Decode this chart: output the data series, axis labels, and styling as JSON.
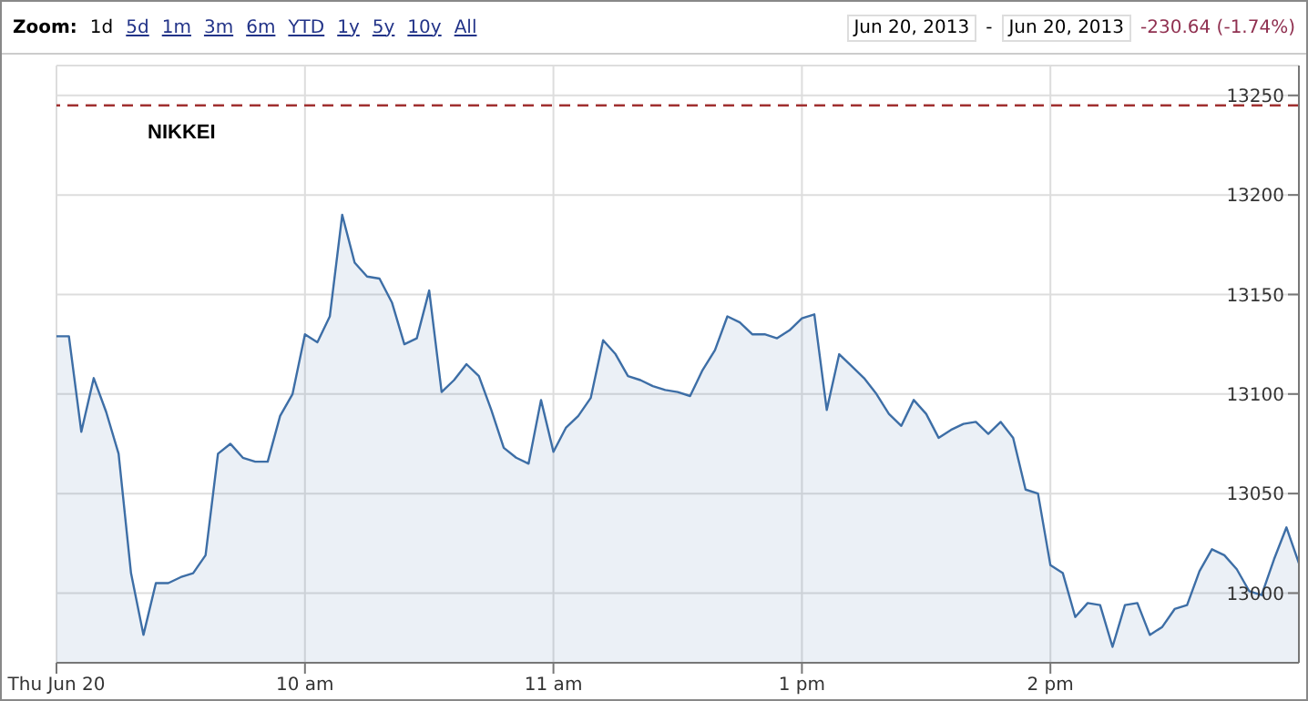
{
  "chart_data": {
    "type": "area",
    "title": "NIKKEI",
    "annotations": [
      "Zoom:",
      "1d",
      "5d",
      "1m",
      "3m",
      "6m",
      "YTD",
      "1y",
      "5y",
      "10y",
      "All",
      "Jun 20, 2013",
      "-",
      "Jun 20, 2013",
      "-230.64 (-1.74%)"
    ],
    "categories": [
      "Thu Jun 20",
      null,
      null,
      null,
      null,
      null,
      null,
      null,
      null,
      null,
      null,
      null,
      null,
      null,
      null,
      null,
      null,
      null,
      null,
      null,
      "10 am",
      null,
      null,
      null,
      null,
      null,
      null,
      null,
      null,
      null,
      null,
      null,
      null,
      null,
      null,
      null,
      null,
      null,
      null,
      null,
      "11 am",
      null,
      null,
      null,
      null,
      null,
      null,
      null,
      null,
      null,
      null,
      null,
      null,
      null,
      null,
      null,
      null,
      null,
      null,
      null,
      "1 pm",
      null,
      null,
      null,
      null,
      null,
      null,
      null,
      null,
      null,
      null,
      null,
      null,
      null,
      null,
      null,
      null,
      null,
      null,
      null,
      "2 pm",
      null,
      null,
      null,
      null,
      null,
      null,
      null,
      null,
      null,
      null,
      null,
      null,
      null,
      null,
      null,
      null,
      null,
      null,
      null,
      null
    ],
    "series": [
      {
        "color": "#3d6ea6",
        "values": [
          13129,
          13129,
          13081,
          13108,
          13091,
          13070,
          13010,
          12979,
          13005,
          13005,
          13008,
          13010,
          13019,
          13070,
          13075,
          13068,
          13066,
          13066,
          13089,
          13100,
          13130,
          13126,
          13139,
          13190,
          13166,
          13159,
          13158,
          13146,
          13125,
          13128,
          13152,
          13101,
          13107,
          13115,
          13109,
          13092,
          13073,
          13068,
          13065,
          13097,
          13071,
          13083,
          13089,
          13098,
          13127,
          13120,
          13109,
          13107,
          13104,
          13102,
          13101,
          13099,
          13112,
          13122,
          13139,
          13136,
          13130,
          13130,
          13128,
          13132,
          13138,
          13140,
          13092,
          13120,
          13114,
          13108,
          13100,
          13090,
          13084,
          13097,
          13090,
          13078,
          13082,
          13085,
          13086,
          13080,
          13086,
          13078,
          13052,
          13050,
          13014,
          13010,
          12988,
          12995,
          12994,
          12973,
          12994,
          12995,
          12979,
          12983,
          12992,
          12994,
          13011,
          13022,
          13019,
          13012,
          13001,
          12999,
          13017,
          13033,
          13015
        ]
      }
    ],
    "ylim": [
      12965,
      13265
    ],
    "yticks": [
      13000,
      13050,
      13100,
      13150,
      13200,
      13250
    ],
    "ref_lines": [
      {
        "axis": "y",
        "value": 13245,
        "color": "#a03030",
        "line_style": "dashed"
      }
    ],
    "grid": true
  }
}
